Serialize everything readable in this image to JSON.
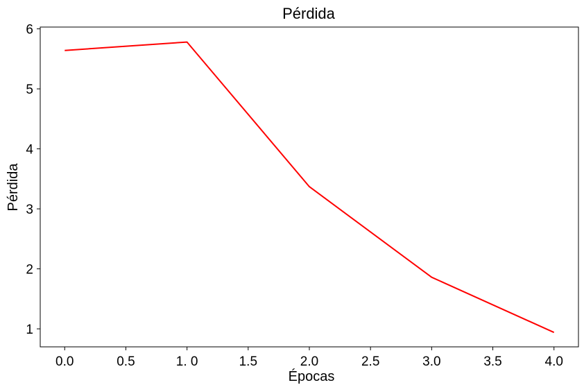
{
  "chart_data": {
    "type": "line",
    "title": "Pérdida",
    "xlabel": "Épocas",
    "ylabel": "Pérdida",
    "xlim": [
      -0.2,
      4.2
    ],
    "ylim": [
      0.7,
      6.03
    ],
    "xticks": [
      0.0,
      0.5,
      1.0,
      1.5,
      2.0,
      2.5,
      3.0,
      3.5,
      4.0
    ],
    "xtick_labels": [
      "0.0",
      "0.5",
      "1. 0",
      "1.5",
      "2.0",
      "2.5",
      "3.0",
      "3.5",
      "4.0"
    ],
    "yticks": [
      1,
      2,
      3,
      4,
      5,
      6
    ],
    "ytick_labels": [
      "1",
      "2",
      "3",
      "4",
      "5",
      "6"
    ],
    "grid": false,
    "series": [
      {
        "color": "#ff0000",
        "x": [
          0,
          1,
          2,
          3,
          4
        ],
        "y": [
          5.64,
          5.78,
          3.37,
          1.86,
          0.94
        ]
      }
    ]
  }
}
